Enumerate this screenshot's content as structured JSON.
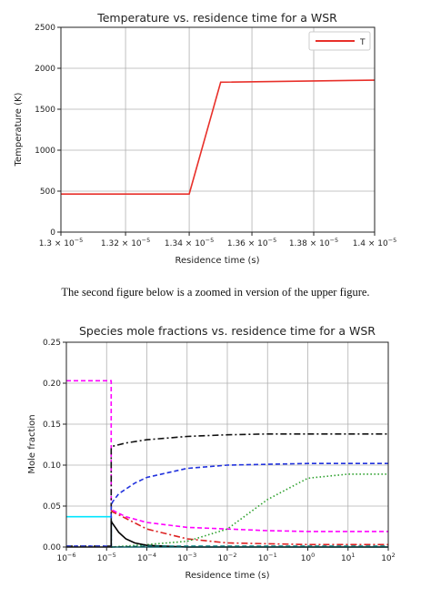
{
  "caption": "The second figure below is a zoomed in version of the upper figure.",
  "chart_data": [
    {
      "type": "line",
      "title": "Temperature vs. residence time for a WSR",
      "xlabel": "Residence time (s)",
      "ylabel": "Temperature (K)",
      "xlim": [
        1.3e-05,
        1.4e-05
      ],
      "ylim": [
        0,
        2500
      ],
      "xscale": "log",
      "grid": true,
      "legend_position": "top-right",
      "xticks": [
        1.3e-05,
        1.32e-05,
        1.34e-05,
        1.36e-05,
        1.38e-05,
        1.4e-05
      ],
      "xtick_labels": [
        {
          "m": "1.3 × 10",
          "e": "−5"
        },
        {
          "m": "1.32 × 10",
          "e": "−5"
        },
        {
          "m": "1.34 × 10",
          "e": "−5"
        },
        {
          "m": "1.36 × 10",
          "e": "−5"
        },
        {
          "m": "1.38 × 10",
          "e": "−5"
        },
        {
          "m": "1.4 × 10",
          "e": "−5"
        }
      ],
      "yticks": [
        0,
        500,
        1000,
        1500,
        2000,
        2500
      ],
      "ytick_labels": [
        "0",
        "500",
        "1000",
        "1500",
        "2000",
        "2500"
      ],
      "series": [
        {
          "name": "T",
          "color": "#e8302a",
          "style": "solid",
          "x": [
            1.3e-05,
            1.34e-05,
            1.35e-05,
            1.4e-05
          ],
          "y": [
            465,
            465,
            1830,
            1855
          ]
        }
      ]
    },
    {
      "type": "line",
      "title": "Species mole fractions vs. residence time for a WSR",
      "xlabel": "Residence time (s)",
      "ylabel": "Mole fraction",
      "xlim": [
        1e-06,
        100
      ],
      "ylim": [
        0,
        0.25
      ],
      "xscale": "log",
      "grid": true,
      "xticks": [
        1e-06,
        1e-05,
        0.0001,
        0.001,
        0.01,
        0.1,
        1,
        10,
        100
      ],
      "xtick_labels": [
        {
          "m": "10",
          "e": "−6"
        },
        {
          "m": "10",
          "e": "−5"
        },
        {
          "m": "10",
          "e": "−4"
        },
        {
          "m": "10",
          "e": "−3"
        },
        {
          "m": "10",
          "e": "−2"
        },
        {
          "m": "10",
          "e": "−1"
        },
        {
          "m": "10",
          "e": "0"
        },
        {
          "m": "10",
          "e": "1"
        },
        {
          "m": "10",
          "e": "2"
        }
      ],
      "yticks": [
        0,
        0.05,
        0.1,
        0.15,
        0.2,
        0.25
      ],
      "ytick_labels": [
        "0.00",
        "0.05",
        "0.10",
        "0.15",
        "0.20",
        "0.25"
      ],
      "series": [
        {
          "color": "#ff00ff",
          "style": "dashed",
          "x": [
            1e-06,
            1.3e-05,
            1.3e-05,
            1.4e-05,
            3e-05,
            0.0001,
            0.001,
            0.01,
            0.1,
            1,
            10,
            100
          ],
          "y": [
            0.203,
            0.203,
            0.048,
            0.045,
            0.037,
            0.03,
            0.024,
            0.022,
            0.02,
            0.019,
            0.019,
            0.019
          ]
        },
        {
          "color": "#00e5ff",
          "style": "solid",
          "x": [
            1e-06,
            1.3e-05,
            1.3e-05,
            100
          ],
          "y": [
            0.037,
            0.037,
            0.0,
            0.0
          ]
        },
        {
          "color": "#111111",
          "style": "dashdot",
          "x": [
            1e-06,
            1.3e-05,
            1.3e-05,
            1.4e-05,
            3e-05,
            0.0001,
            0.001,
            0.01,
            0.1,
            1,
            10,
            100
          ],
          "y": [
            0.001,
            0.001,
            0.12,
            0.123,
            0.127,
            0.131,
            0.135,
            0.137,
            0.138,
            0.138,
            0.138,
            0.138
          ]
        },
        {
          "color": "#2233dd",
          "style": "dashed",
          "x": [
            1e-06,
            1.3e-05,
            1.3e-05,
            1.4e-05,
            2e-05,
            5e-05,
            0.0001,
            0.001,
            0.01,
            0.1,
            1,
            10,
            100
          ],
          "y": [
            0.001,
            0.001,
            0.05,
            0.055,
            0.065,
            0.078,
            0.085,
            0.096,
            0.1,
            0.101,
            0.102,
            0.102,
            0.102
          ]
        },
        {
          "color": "#dd2222",
          "style": "dashdot",
          "x": [
            1.3e-05,
            1.4e-05,
            3e-05,
            0.0001,
            0.001,
            0.01,
            0.1,
            1,
            10,
            100
          ],
          "y": [
            0.045,
            0.043,
            0.035,
            0.022,
            0.01,
            0.005,
            0.004,
            0.003,
            0.003,
            0.003
          ]
        },
        {
          "color": "#2ca02c",
          "style": "dotted",
          "x": [
            1.3e-05,
            0.0001,
            0.001,
            0.01,
            0.1,
            1,
            10,
            100
          ],
          "y": [
            0.0,
            0.003,
            0.007,
            0.022,
            0.058,
            0.084,
            0.089,
            0.089
          ]
        },
        {
          "color": "#000000",
          "style": "solid",
          "x": [
            1e-06,
            1.3e-05,
            1.3e-05,
            1.35e-05,
            2e-05,
            3e-05,
            5e-05,
            0.0001,
            0.001,
            100
          ],
          "y": [
            0.0,
            0.0,
            0.032,
            0.03,
            0.018,
            0.01,
            0.005,
            0.002,
            0.0,
            0.0
          ]
        },
        {
          "color": "#008080",
          "style": "dashed",
          "x": [
            1.3e-05,
            0.0001,
            0.001,
            100
          ],
          "y": [
            0.0,
            0.001,
            0.001,
            0.001
          ]
        }
      ]
    }
  ]
}
